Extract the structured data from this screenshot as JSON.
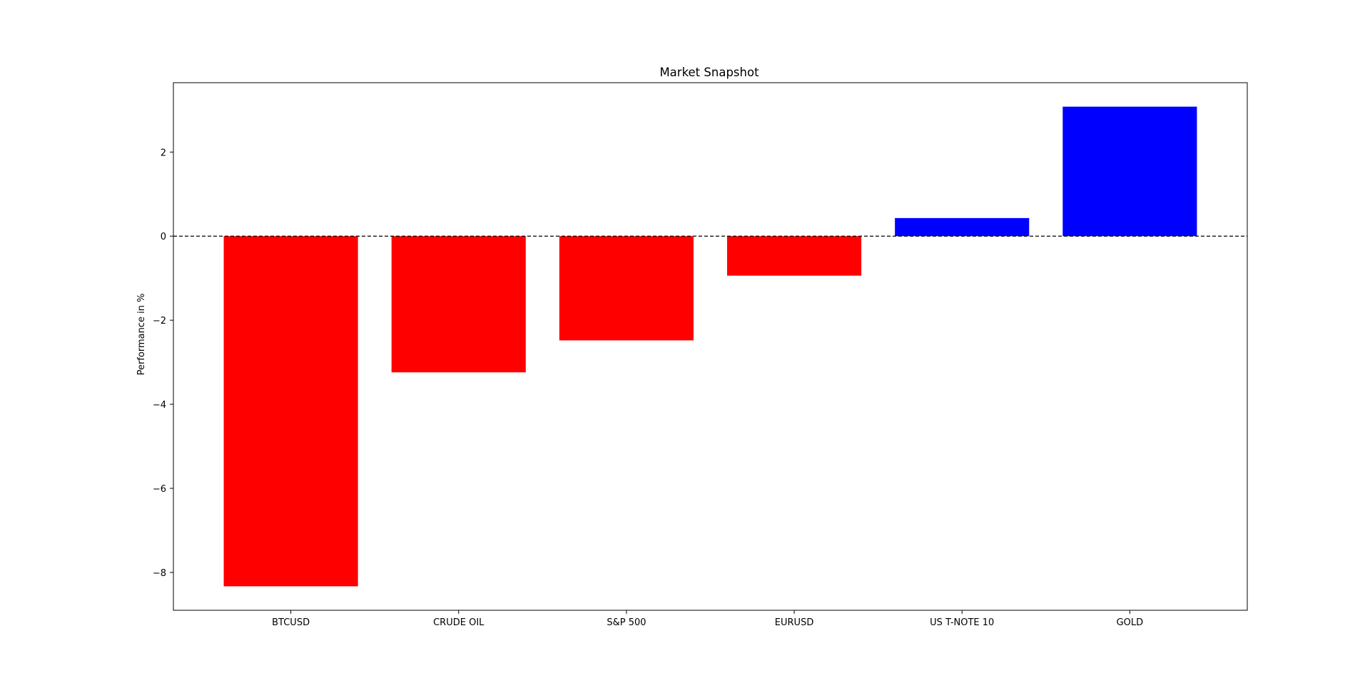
{
  "chart_data": {
    "type": "bar",
    "title": "Market Snapshot",
    "xlabel": "",
    "ylabel": "Performance in %",
    "categories": [
      "BTCUSD",
      "CRUDE OIL",
      "S&P 500",
      "EURUSD",
      "US T-NOTE 10",
      "GOLD"
    ],
    "values": [
      -8.33,
      -3.24,
      -2.48,
      -0.94,
      0.43,
      3.08
    ],
    "colors": [
      "#ff0000",
      "#ff0000",
      "#ff0000",
      "#ff0000",
      "#0000ff",
      "#0000ff"
    ],
    "ylim": [
      -8.9,
      3.65
    ],
    "yticks": [
      -8,
      -6,
      -4,
      -2,
      0,
      2
    ],
    "ytick_labels": [
      "−8",
      "−6",
      "−4",
      "−2",
      "0",
      "2"
    ],
    "zero_line": "dashed",
    "grid": false
  }
}
